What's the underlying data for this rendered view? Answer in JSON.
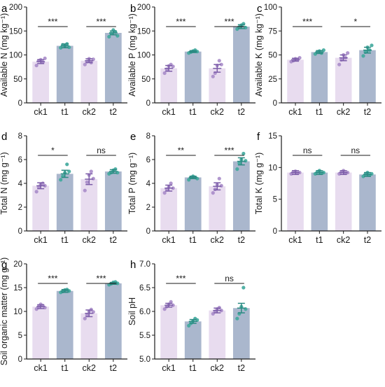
{
  "chart_data": [
    {
      "type": "bar",
      "panel": "a",
      "ylabel": "Available N (mg kg⁻¹)",
      "ylim": [
        0,
        200
      ],
      "yticks": [
        0,
        50,
        100,
        150,
        200
      ],
      "tick_labels": [
        "0",
        "50",
        "100",
        "150",
        "200"
      ],
      "categories": [
        "ck1",
        "t1",
        "ck2",
        "t2"
      ],
      "values": [
        86,
        119,
        88,
        146
      ],
      "errors": [
        4,
        4,
        4,
        4
      ],
      "points": [
        [
          78,
          88,
          90,
          85,
          93
        ],
        [
          115,
          121,
          118,
          123,
          116
        ],
        [
          80,
          86,
          92,
          84,
          91
        ],
        [
          138,
          145,
          152,
          148,
          140
        ]
      ],
      "significance": [
        "***",
        "***"
      ]
    },
    {
      "type": "bar",
      "panel": "b",
      "ylabel": "Available P (mg kg⁻¹)",
      "ylim": [
        0,
        200
      ],
      "yticks": [
        0,
        50,
        100,
        150,
        200
      ],
      "tick_labels": [
        "0",
        "50",
        "100",
        "150",
        "200"
      ],
      "categories": [
        "ck1",
        "t1",
        "ck2",
        "t2"
      ],
      "values": [
        72,
        107,
        72,
        159
      ],
      "errors": [
        6,
        2,
        8,
        4
      ],
      "points": [
        [
          62,
          70,
          77,
          80,
          76
        ],
        [
          104,
          106,
          108,
          110,
          107
        ],
        [
          55,
          62,
          78,
          88,
          80
        ],
        [
          154,
          158,
          162,
          165,
          157
        ]
      ],
      "significance": [
        "***",
        "***"
      ]
    },
    {
      "type": "bar",
      "panel": "c",
      "ylabel": "Available K (mg kg⁻¹)",
      "ylim": [
        0,
        100
      ],
      "yticks": [
        0,
        25,
        50,
        75,
        100
      ],
      "tick_labels": [
        "0",
        "25",
        "50",
        "75",
        "100"
      ],
      "categories": [
        "ck1",
        "t1",
        "ck2",
        "t2"
      ],
      "values": [
        45,
        53,
        47,
        55
      ],
      "errors": [
        1.5,
        1.5,
        3,
        3
      ],
      "points": [
        [
          43,
          44,
          46,
          45,
          47
        ],
        [
          51,
          53,
          54,
          52,
          55
        ],
        [
          40,
          45,
          50,
          47,
          52
        ],
        [
          49,
          53,
          58,
          55,
          60
        ]
      ],
      "significance": [
        "***",
        "*"
      ]
    },
    {
      "type": "bar",
      "panel": "d",
      "ylabel": "Total N (mg g⁻¹)",
      "ylim": [
        0,
        8
      ],
      "yticks": [
        0,
        2,
        4,
        6,
        8
      ],
      "tick_labels": [
        "0",
        "2",
        "4",
        "6",
        "8"
      ],
      "categories": [
        "ck1",
        "t1",
        "ck2",
        "t2"
      ],
      "values": [
        3.8,
        4.8,
        4.35,
        5.0
      ],
      "errors": [
        0.25,
        0.3,
        0.45,
        0.15
      ],
      "points": [
        [
          3.3,
          3.7,
          3.9,
          4.0,
          3.8
        ],
        [
          4.3,
          4.6,
          4.9,
          5.6,
          5.0
        ],
        [
          3.4,
          4.1,
          4.7,
          5.0,
          4.4
        ],
        [
          4.8,
          4.9,
          5.1,
          5.2,
          4.9
        ]
      ],
      "significance": [
        "*",
        "ns"
      ]
    },
    {
      "type": "bar",
      "panel": "e",
      "ylabel": "Total P (mg g⁻¹)",
      "ylim": [
        0,
        8
      ],
      "yticks": [
        0,
        2,
        4,
        6,
        8
      ],
      "tick_labels": [
        "0",
        "2",
        "4",
        "6",
        "8"
      ],
      "categories": [
        "ck1",
        "t1",
        "ck2",
        "t2"
      ],
      "values": [
        3.6,
        4.5,
        3.75,
        5.85
      ],
      "errors": [
        0.25,
        0.1,
        0.3,
        0.3
      ],
      "points": [
        [
          3.2,
          3.5,
          3.7,
          4.0,
          3.6
        ],
        [
          4.3,
          4.5,
          4.6,
          4.5,
          4.4
        ],
        [
          3.2,
          3.5,
          3.9,
          4.4,
          3.8
        ],
        [
          5.2,
          5.7,
          6.0,
          6.5,
          5.9
        ]
      ],
      "significance": [
        "**",
        "***"
      ]
    },
    {
      "type": "bar",
      "panel": "f",
      "ylabel": "Total K (mg g⁻¹)",
      "ylim": [
        0,
        15
      ],
      "yticks": [
        0,
        5,
        10,
        15
      ],
      "tick_labels": [
        "0",
        "5",
        "10",
        "15"
      ],
      "categories": [
        "ck1",
        "t1",
        "ck2",
        "t2"
      ],
      "values": [
        9.2,
        9.2,
        9.2,
        8.9
      ],
      "errors": [
        0.3,
        0.3,
        0.3,
        0.3
      ],
      "points": [
        [
          9.0,
          9.3,
          9.4,
          9.1,
          9.2
        ],
        [
          9.0,
          9.3,
          9.5,
          9.1,
          9.2
        ],
        [
          9.0,
          9.3,
          9.5,
          9.1,
          9.2
        ],
        [
          8.6,
          8.9,
          9.2,
          8.8,
          9.0
        ]
      ],
      "significance": [
        "ns",
        "ns"
      ]
    },
    {
      "type": "bar",
      "panel": "g",
      "ylabel": "Soil organic matter (mg g⁻¹)",
      "ylim": [
        0,
        20
      ],
      "yticks": [
        0,
        5,
        10,
        15,
        20
      ],
      "tick_labels": [
        "0",
        "5",
        "10",
        "15",
        "20"
      ],
      "categories": [
        "ck1",
        "t1",
        "ck2",
        "t2"
      ],
      "values": [
        11.0,
        14.3,
        9.6,
        15.9
      ],
      "errors": [
        0.4,
        0.3,
        0.7,
        0.2
      ],
      "points": [
        [
          10.5,
          11.0,
          11.5,
          11.2,
          10.8
        ],
        [
          14.0,
          14.2,
          14.5,
          14.6,
          14.3
        ],
        [
          8.5,
          9.2,
          10.0,
          10.4,
          9.9
        ],
        [
          15.6,
          15.8,
          16.1,
          16.2,
          15.9
        ]
      ],
      "significance": [
        "***",
        "***"
      ]
    },
    {
      "type": "bar",
      "panel": "h",
      "ylabel": "Soil pH",
      "ylim": [
        5.0,
        7.0
      ],
      "yticks": [
        5.0,
        5.5,
        6.0,
        6.5,
        7.0
      ],
      "tick_labels": [
        "5.0",
        "5.5",
        "6.0",
        "6.5",
        "7.0"
      ],
      "categories": [
        "ck1",
        "t1",
        "ck2",
        "t2"
      ],
      "values": [
        6.13,
        5.79,
        6.02,
        6.07
      ],
      "errors": [
        0.04,
        0.04,
        0.05,
        0.1
      ],
      "points": [
        [
          6.05,
          6.1,
          6.15,
          6.2,
          6.13
        ],
        [
          5.7,
          5.75,
          5.8,
          5.85,
          5.82
        ],
        [
          5.95,
          6.0,
          6.05,
          6.08,
          6.02
        ],
        [
          5.85,
          5.95,
          6.1,
          6.5,
          6.05
        ]
      ],
      "significance": [
        "***",
        "ns"
      ]
    }
  ],
  "colors": {
    "ck_bar": "#e8dcef",
    "t_bar": "#aab7cd",
    "ck_point": "#a88cc9",
    "t_point": "#3fa99c",
    "ck_err": "#7b5ca8",
    "t_err": "#2b8a82"
  }
}
